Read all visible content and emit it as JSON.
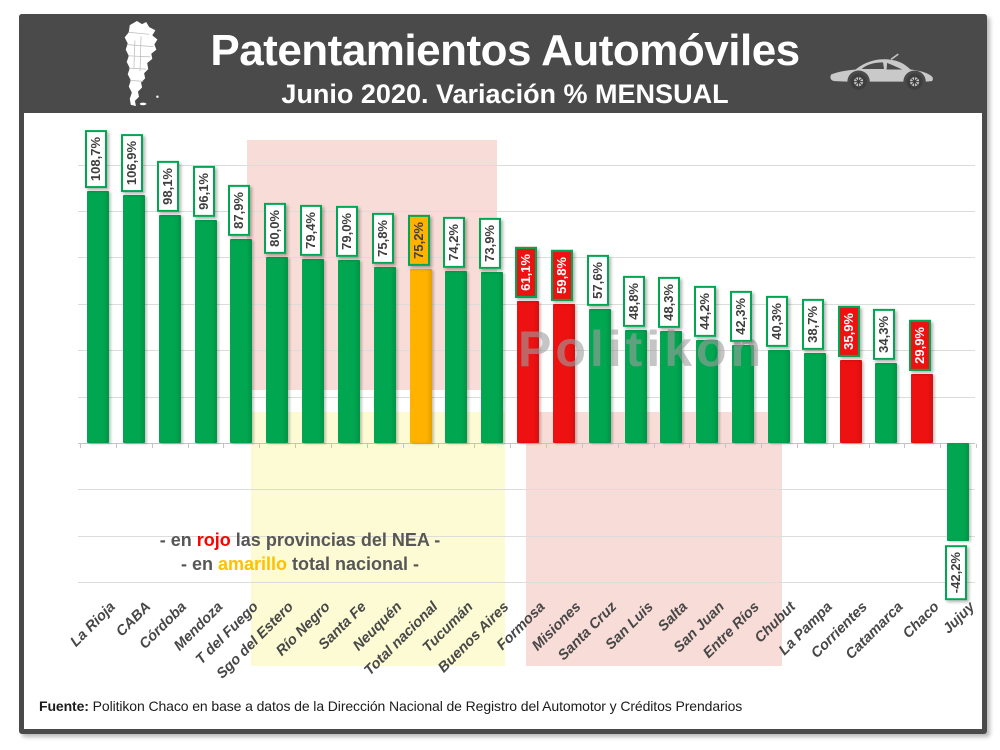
{
  "header": {
    "title": "Patentamientos Automóviles",
    "subtitle": "Junio 2020. Variación % MENSUAL",
    "map_icon": "argentina-map",
    "car_icon": "car-silhouette"
  },
  "watermark": "Politikon",
  "legend": {
    "lines": [
      {
        "parts": [
          {
            "text": "- en "
          },
          {
            "text": "rojo",
            "color": "red"
          },
          {
            "text": " las provincias del NEA -"
          }
        ]
      },
      {
        "parts": [
          {
            "text": "- en "
          },
          {
            "text": "amarillo",
            "color": "yellow"
          },
          {
            "text": " total nacional -"
          }
        ]
      }
    ]
  },
  "footer": {
    "source_label": "Fuente:",
    "source_text": "Politikon Chaco en base a datos de la Dirección Nacional de Registro del Automotor y Créditos Prendarios"
  },
  "colors": {
    "green": "#00A650",
    "red": "#EE1111",
    "yellow": "#FFB300",
    "label_border": "#00A650",
    "text_dark": "#3F3F3F",
    "legend_red": "#FF0000",
    "legend_yellow": "#FFC000",
    "legend_gray": "#575757",
    "header_bg": "#4A4A4A",
    "pink_overlay": "#F8DCD7",
    "yellow_overlay": "#FCFBD4"
  },
  "chart_data": {
    "type": "bar",
    "title": "Patentamientos Automóviles - Junio 2020. Variación % MENSUAL",
    "categories": [
      "La Rioja",
      "CABA",
      "Córdoba",
      "Mendoza",
      "T del Fuego",
      "Sgo del Estero",
      "Río Negro",
      "Santa Fe",
      "Neuquén",
      "Total nacional",
      "Tucumán",
      "Buenos Aires",
      "Formosa",
      "Misiones",
      "Santa Cruz",
      "San Luis",
      "Salta",
      "San Juan",
      "Entre Ríos",
      "Chubut",
      "La Pampa",
      "Corrientes",
      "Catamarca",
      "Chaco",
      "Jujuy"
    ],
    "values": [
      108.7,
      106.9,
      98.1,
      96.1,
      87.9,
      80.0,
      79.4,
      79.0,
      75.8,
      75.2,
      74.2,
      73.9,
      61.1,
      59.8,
      57.6,
      48.8,
      48.3,
      44.2,
      42.3,
      40.3,
      38.7,
      35.9,
      34.3,
      29.9,
      -42.2
    ],
    "display_labels": [
      "108,7%",
      "106,9%",
      "98,1%",
      "96,1%",
      "87,9%",
      "80,0%",
      "79,4%",
      "79,0%",
      "75,8%",
      "75,2%",
      "74,2%",
      "73,9%",
      "61,1%",
      "59,8%",
      "57,6%",
      "48,8%",
      "48,3%",
      "44,2%",
      "42,3%",
      "40,3%",
      "38,7%",
      "35,9%",
      "34,3%",
      "29,9%",
      "-42,2%"
    ],
    "bar_colors": [
      "green",
      "green",
      "green",
      "green",
      "green",
      "green",
      "green",
      "green",
      "green",
      "yellow",
      "green",
      "green",
      "red",
      "red",
      "green",
      "green",
      "green",
      "green",
      "green",
      "green",
      "green",
      "red",
      "green",
      "red",
      "green"
    ],
    "xlabel": "",
    "ylabel": "",
    "ylim": [
      -60,
      120
    ],
    "grid_step": 20,
    "grid": true,
    "legend_position": "none"
  }
}
